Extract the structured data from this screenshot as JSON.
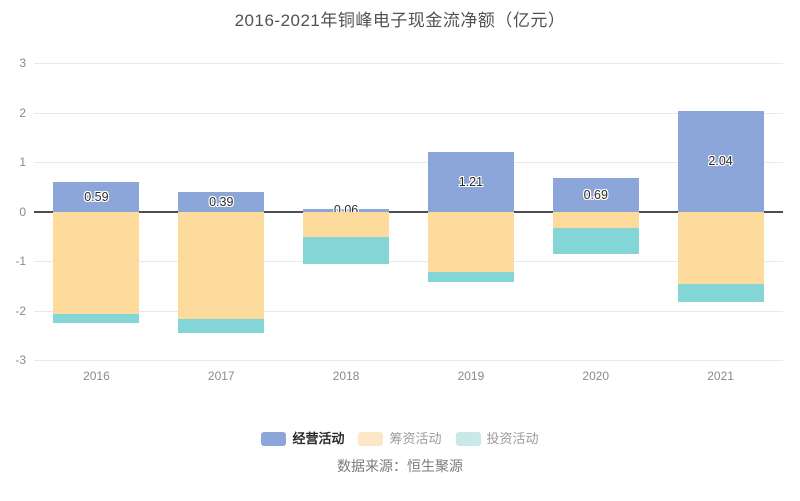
{
  "title": "2016-2021年铜峰电子现金流净额（亿元）",
  "source": "数据来源：恒生聚源",
  "legend": [
    {
      "key": "operating",
      "label": "经营活动",
      "swatch": "#8ca6d9",
      "text_color": "#2b2b2b",
      "bold": true
    },
    {
      "key": "financing",
      "label": "筹资活动",
      "swatch": "#fce8c6",
      "text_color": "#9b9b9b",
      "bold": false
    },
    {
      "key": "investing",
      "label": "投资活动",
      "swatch": "#c9e9e9",
      "text_color": "#9b9b9b",
      "bold": false
    }
  ],
  "chart_data": {
    "type": "bar",
    "stacked": true,
    "title": "2016-2021年铜峰电子现金流净额（亿元）",
    "xlabel": "",
    "ylabel": "",
    "categories": [
      "2016",
      "2017",
      "2018",
      "2019",
      "2020",
      "2021"
    ],
    "series": [
      {
        "key": "operating",
        "name": "经营活动",
        "color": "#8ca6d9",
        "values": [
          0.59,
          0.39,
          0.06,
          1.21,
          0.69,
          2.04
        ],
        "labels": [
          "0.59",
          "0.39",
          "0.06",
          "1.21",
          "0.69",
          "2.04"
        ]
      },
      {
        "key": "financing",
        "name": "筹资活动",
        "color": "#fddb9d",
        "values": [
          -2.06,
          -2.17,
          -0.51,
          -1.21,
          -0.32,
          -1.46
        ]
      },
      {
        "key": "investing",
        "name": "投资活动",
        "color": "#84d5d6",
        "values": [
          -0.18,
          -0.29,
          -0.55,
          -0.22,
          -0.54,
          -0.36
        ]
      }
    ],
    "ylim": [
      -3,
      3
    ],
    "yticks": [
      3,
      2,
      1,
      0,
      -1,
      -2,
      -3
    ],
    "grid": true,
    "zero_line": true,
    "legend_position": "bottom",
    "colors": {
      "grid": "#e5eaf2",
      "zero_axis": "#4a4d55",
      "tick_text": "#8b8b8b",
      "title_text": "#525252",
      "source_text": "#7b7b7b",
      "bar_label_text": "#2b2b2b"
    }
  }
}
